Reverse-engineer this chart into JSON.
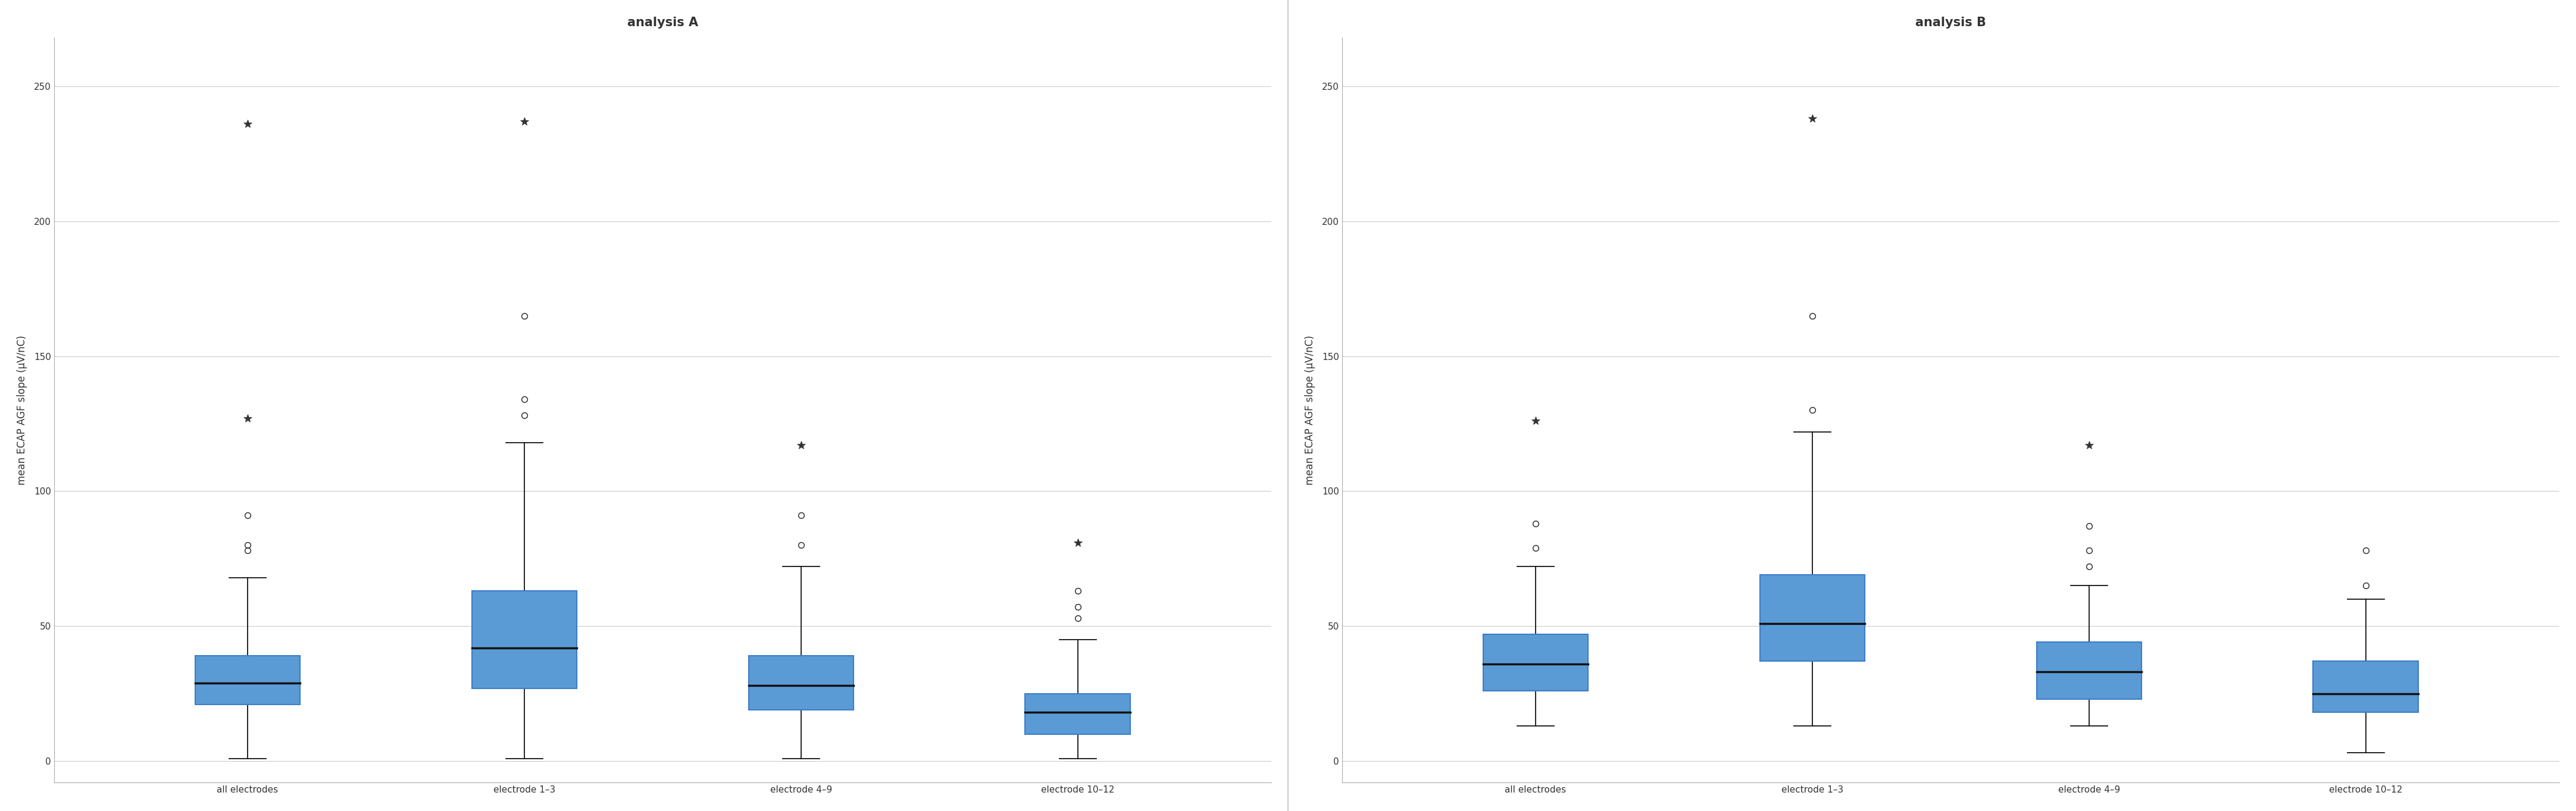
{
  "title_A": "analysis A",
  "title_B": "analysis B",
  "ylabel": "mean ECAP AGF slope (μV/nC)",
  "categories": [
    "all electrodes",
    "electrode 1–3",
    "electrode 4–9",
    "electrode 10–12"
  ],
  "ylim": [
    -8,
    268
  ],
  "yticks": [
    0,
    50,
    100,
    150,
    200,
    250
  ],
  "box_color": "#5B9BD5",
  "box_edge_color": "#3A7DC9",
  "median_color": "#111111",
  "whisker_color": "#111111",
  "background_color": "#ffffff",
  "grid_color": "#d0d0d0",
  "panel_A": {
    "boxes": [
      {
        "q1": 21,
        "median": 29,
        "q3": 39,
        "whislo": 1,
        "whishi": 68,
        "fliers_circle": [
          78,
          80,
          91
        ],
        "fliers_star": [
          127,
          236
        ]
      },
      {
        "q1": 27,
        "median": 42,
        "q3": 63,
        "whislo": 1,
        "whishi": 118,
        "fliers_circle": [
          128,
          134,
          165
        ],
        "fliers_star": [
          237
        ]
      },
      {
        "q1": 19,
        "median": 28,
        "q3": 39,
        "whislo": 1,
        "whishi": 72,
        "fliers_circle": [
          80,
          91
        ],
        "fliers_star": [
          117
        ]
      },
      {
        "q1": 10,
        "median": 18,
        "q3": 25,
        "whislo": 1,
        "whishi": 45,
        "fliers_circle": [
          53,
          57,
          63
        ],
        "fliers_star": [
          81
        ]
      }
    ]
  },
  "panel_B": {
    "boxes": [
      {
        "q1": 26,
        "median": 36,
        "q3": 47,
        "whislo": 13,
        "whishi": 72,
        "fliers_circle": [
          79,
          88
        ],
        "fliers_star": [
          126
        ]
      },
      {
        "q1": 37,
        "median": 51,
        "q3": 69,
        "whislo": 13,
        "whishi": 122,
        "fliers_circle": [
          130,
          165
        ],
        "fliers_star": [
          238
        ]
      },
      {
        "q1": 23,
        "median": 33,
        "q3": 44,
        "whislo": 13,
        "whishi": 65,
        "fliers_circle": [
          72,
          78,
          87
        ],
        "fliers_star": [
          117
        ]
      },
      {
        "q1": 18,
        "median": 25,
        "q3": 37,
        "whislo": 3,
        "whishi": 60,
        "fliers_circle": [
          65,
          78
        ],
        "fliers_star": []
      }
    ]
  },
  "title_fontsize": 15,
  "label_fontsize": 12,
  "tick_fontsize": 11,
  "box_width": 0.38,
  "cap_ratio": 0.35
}
